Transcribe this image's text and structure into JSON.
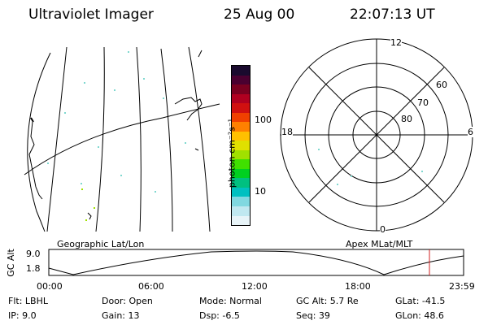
{
  "header": {
    "instrument": "Ultraviolet Imager",
    "date": "25 Aug 00",
    "time": "22:07:13 UT"
  },
  "colorbar": {
    "unit": "photon cm⁻²s⁻¹",
    "tick_100": "100",
    "tick_10": "10",
    "colors": [
      "#1a0a2e",
      "#4a0030",
      "#7a0020",
      "#b00020",
      "#d01010",
      "#f04000",
      "#ff8000",
      "#ffc000",
      "#e0e000",
      "#a0e000",
      "#40e000",
      "#00d020",
      "#00c080",
      "#00c0c0",
      "#80d8e0",
      "#c0e8f0",
      "#e8f4f8"
    ]
  },
  "polar": {
    "label_12": "12",
    "label_18": "18",
    "label_6": "6",
    "label_0": "0",
    "label_60": "60",
    "label_70": "70",
    "label_80": "80"
  },
  "altitude_strip": {
    "left_label": "Geographic Lat/Lon",
    "right_label": "Apex MLat/MLT",
    "y_axis_label": "GC Alt",
    "y_max": "9.0",
    "y_min": "1.8",
    "x_ticks": [
      "00:00",
      "06:00",
      "12:00",
      "18:00",
      "23:59"
    ]
  },
  "footer": {
    "flt": "Flt: LBHL",
    "ip": "IP:  9.0",
    "door": "Door: Open",
    "gain": "Gain: 13",
    "mode": "Mode: Normal",
    "dsp": "Dsp:   -6.5",
    "gcalt": "GC Alt: 5.7 Re",
    "seq": "Seq: 39",
    "glat": "GLat: -41.5",
    "glon": "GLon:  48.6"
  }
}
